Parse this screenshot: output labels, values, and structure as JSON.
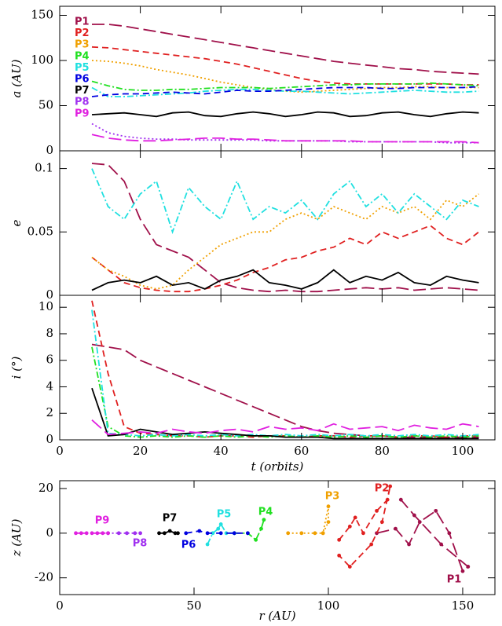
{
  "chart_data": [
    {
      "type": "line",
      "ylabel": "a (AU)",
      "x": [
        8,
        12,
        16,
        20,
        24,
        28,
        32,
        36,
        40,
        44,
        48,
        52,
        56,
        60,
        64,
        68,
        72,
        76,
        80,
        84,
        88,
        92,
        96,
        100,
        104
      ],
      "xlim": [
        0,
        108
      ],
      "xticks": [
        0,
        20,
        40,
        60,
        80,
        100
      ],
      "ylim": [
        0,
        160
      ],
      "yticks": [
        0,
        50,
        100,
        150
      ],
      "series": [
        {
          "name": "P1",
          "color": "#a0104a",
          "style": "long-dashed",
          "values": [
            140,
            140,
            138,
            135,
            132,
            129,
            126,
            123,
            120,
            117,
            114,
            111,
            108,
            105,
            102,
            99,
            97,
            95,
            93,
            91,
            90,
            88,
            87,
            86,
            85
          ]
        },
        {
          "name": "P2",
          "color": "#e02020",
          "style": "dashed",
          "values": [
            115,
            114,
            112,
            110,
            108,
            106,
            104,
            102,
            99,
            96,
            92,
            88,
            84,
            80,
            77,
            75,
            74,
            74,
            74,
            74,
            74,
            74,
            74,
            73,
            73
          ]
        },
        {
          "name": "P3",
          "color": "#f0a000",
          "style": "dotted",
          "values": [
            100,
            99,
            97,
            94,
            90,
            87,
            84,
            80,
            76,
            73,
            70,
            68,
            66,
            65,
            66,
            67,
            68,
            69,
            70,
            70,
            71,
            71,
            70,
            70,
            70
          ]
        },
        {
          "name": "P4",
          "color": "#20e020",
          "style": "dash-dot",
          "values": [
            77,
            72,
            68,
            67,
            67,
            68,
            68,
            69,
            70,
            70,
            70,
            69,
            70,
            71,
            72,
            73,
            73,
            74,
            74,
            74,
            74,
            75,
            74,
            73,
            72
          ]
        },
        {
          "name": "P5",
          "color": "#20e0e0",
          "style": "dash-dot",
          "values": [
            70,
            60,
            60,
            61,
            62,
            63,
            64,
            66,
            67,
            68,
            68,
            67,
            66,
            66,
            65,
            64,
            63,
            64,
            65,
            66,
            67,
            66,
            65,
            65,
            66
          ]
        },
        {
          "name": "P6",
          "color": "#0000e0",
          "style": "dashed",
          "values": [
            60,
            62,
            63,
            63,
            64,
            65,
            64,
            63,
            65,
            67,
            66,
            66,
            67,
            68,
            69,
            70,
            70,
            70,
            69,
            69,
            70,
            70,
            70,
            70,
            71
          ]
        },
        {
          "name": "P7",
          "color": "#000000",
          "style": "solid",
          "values": [
            40,
            41,
            42,
            40,
            38,
            42,
            43,
            39,
            38,
            41,
            43,
            41,
            38,
            40,
            43,
            42,
            38,
            39,
            42,
            43,
            40,
            38,
            41,
            43,
            42
          ]
        },
        {
          "name": "P8",
          "color": "#a030f0",
          "style": "dotted",
          "values": [
            30,
            20,
            16,
            14,
            13,
            13,
            12,
            12,
            12,
            12,
            12,
            11,
            11,
            11,
            11,
            11,
            10,
            10,
            10,
            10,
            10,
            10,
            9,
            9,
            9
          ]
        },
        {
          "name": "P9",
          "color": "#e020e0",
          "style": "long-dashed",
          "values": [
            18,
            14,
            12,
            11,
            11,
            12,
            13,
            14,
            14,
            13,
            13,
            12,
            11,
            11,
            11,
            11,
            11,
            10,
            10,
            10,
            10,
            10,
            10,
            10,
            9
          ]
        }
      ]
    },
    {
      "type": "line",
      "ylabel": "e",
      "x": [
        8,
        12,
        16,
        20,
        24,
        28,
        32,
        36,
        40,
        44,
        48,
        52,
        56,
        60,
        64,
        68,
        72,
        76,
        80,
        84,
        88,
        92,
        96,
        100,
        104
      ],
      "xlim": [
        0,
        108
      ],
      "xticks": [
        0,
        20,
        40,
        60,
        80,
        100
      ],
      "ylim": [
        0,
        0.114
      ],
      "yticks": [
        0,
        0.05,
        0.1
      ],
      "series": [
        {
          "name": "P1",
          "color": "#a0104a",
          "style": "long-dashed",
          "values": [
            0.104,
            0.103,
            0.09,
            0.06,
            0.04,
            0.035,
            0.03,
            0.02,
            0.01,
            0.006,
            0.004,
            0.003,
            0.004,
            0.003,
            0.003,
            0.004,
            0.005,
            0.006,
            0.005,
            0.006,
            0.004,
            0.005,
            0.006,
            0.005,
            0.004
          ]
        },
        {
          "name": "P2",
          "color": "#e02020",
          "style": "dashed",
          "values": [
            0.03,
            0.02,
            0.01,
            0.006,
            0.004,
            0.003,
            0.003,
            0.005,
            0.008,
            0.012,
            0.018,
            0.022,
            0.028,
            0.03,
            0.035,
            0.038,
            0.045,
            0.04,
            0.05,
            0.045,
            0.05,
            0.055,
            0.045,
            0.04,
            0.05
          ]
        },
        {
          "name": "P3",
          "color": "#f0a000",
          "style": "dotted",
          "values": [
            0.03,
            0.02,
            0.015,
            0.008,
            0.005,
            0.008,
            0.02,
            0.03,
            0.04,
            0.045,
            0.05,
            0.05,
            0.06,
            0.065,
            0.06,
            0.07,
            0.065,
            0.06,
            0.07,
            0.065,
            0.07,
            0.06,
            0.075,
            0.07,
            0.08
          ]
        },
        {
          "name": "P5",
          "color": "#20e0e0",
          "style": "dash-dot",
          "values": [
            0.1,
            0.07,
            0.06,
            0.08,
            0.09,
            0.05,
            0.085,
            0.07,
            0.06,
            0.09,
            0.06,
            0.07,
            0.065,
            0.075,
            0.06,
            0.08,
            0.09,
            0.07,
            0.08,
            0.065,
            0.08,
            0.07,
            0.06,
            0.075,
            0.07
          ]
        },
        {
          "name": "P7",
          "color": "#000000",
          "style": "solid",
          "values": [
            0.004,
            0.01,
            0.012,
            0.01,
            0.015,
            0.008,
            0.01,
            0.005,
            0.012,
            0.015,
            0.02,
            0.01,
            0.008,
            0.005,
            0.01,
            0.02,
            0.01,
            0.015,
            0.012,
            0.018,
            0.01,
            0.008,
            0.015,
            0.012,
            0.01
          ]
        }
      ]
    },
    {
      "type": "line",
      "ylabel": "i (°)",
      "xlabel": "t (orbits)",
      "x": [
        8,
        12,
        16,
        20,
        24,
        28,
        32,
        36,
        40,
        44,
        48,
        52,
        56,
        60,
        64,
        68,
        72,
        76,
        80,
        84,
        88,
        92,
        96,
        100,
        104
      ],
      "xlim": [
        0,
        108
      ],
      "xticks": [
        0,
        20,
        40,
        60,
        80,
        100
      ],
      "ylim": [
        0,
        10.9
      ],
      "yticks": [
        0,
        2,
        4,
        6,
        8,
        10
      ],
      "series": [
        {
          "name": "P1",
          "color": "#a0104a",
          "style": "long-dashed",
          "values": [
            7.2,
            7,
            6.8,
            6,
            5.5,
            5,
            4.5,
            4,
            3.5,
            3,
            2.5,
            2,
            1.5,
            1,
            0.7,
            0.5,
            0.4,
            0.3,
            0.3,
            0.2,
            0.2,
            0.2,
            0.2,
            0.2,
            0.2
          ]
        },
        {
          "name": "P2",
          "color": "#e02020",
          "style": "dashed",
          "values": [
            10.5,
            5,
            1,
            0.5,
            0.4,
            0.3,
            0.3,
            0.2,
            0.3,
            0.3,
            0.2,
            0.3,
            0.3,
            0.2,
            0.3,
            0.3,
            0.2,
            0.3,
            0.3,
            0.2,
            0.3,
            0.3,
            0.2,
            0.3,
            0.3
          ]
        },
        {
          "name": "P4",
          "color": "#20e020",
          "style": "dash-dot",
          "values": [
            7,
            1,
            0.3,
            0.2,
            0.3,
            0.2,
            0.3,
            0.2,
            0.3,
            0.2,
            0.3,
            0.2,
            0.3,
            0.2,
            0.3,
            0.2,
            0.3,
            0.2,
            0.3,
            0.2,
            0.3,
            0.2,
            0.3,
            0.2,
            0.3
          ]
        },
        {
          "name": "P5",
          "color": "#20e0e0",
          "style": "dash-dot",
          "values": [
            9.8,
            0.5,
            0.4,
            0.3,
            0.4,
            0.3,
            0.4,
            0.3,
            0.4,
            0.3,
            0.4,
            0.3,
            0.4,
            0.3,
            0.4,
            0.3,
            0.4,
            0.3,
            0.4,
            0.3,
            0.4,
            0.3,
            0.4,
            0.3,
            0.4
          ]
        },
        {
          "name": "P7",
          "color": "#000000",
          "style": "solid",
          "values": [
            3.9,
            0.3,
            0.4,
            0.8,
            0.6,
            0.4,
            0.5,
            0.6,
            0.5,
            0.4,
            0.3,
            0.3,
            0.2,
            0.2,
            0.2,
            0.1,
            0.1,
            0.1,
            0.1,
            0.1,
            0.1,
            0.1,
            0.1,
            0.1,
            0.1
          ]
        },
        {
          "name": "P9",
          "color": "#e020e0",
          "style": "long-dashed",
          "values": [
            1.5,
            0.4,
            0.5,
            0.6,
            0.5,
            0.8,
            0.6,
            0.5,
            0.7,
            0.8,
            0.6,
            1,
            0.8,
            0.9,
            0.7,
            1.2,
            0.8,
            0.9,
            1,
            0.7,
            1.1,
            0.9,
            0.8,
            1.2,
            1
          ]
        }
      ]
    },
    {
      "type": "line",
      "ylabel": "z (AU)",
      "xlabel": "r (AU)",
      "xlim": [
        0,
        162
      ],
      "xticks": [
        0,
        50,
        100,
        150
      ],
      "ylim": [
        -27.5,
        23.5
      ],
      "yticks": [
        -20,
        0,
        20
      ],
      "series": [
        {
          "name": "P1",
          "color": "#a0104a",
          "style": "long-dashed",
          "x": [
            118,
            125,
            130,
            134,
            140,
            145,
            150,
            152,
            142,
            132,
            127
          ],
          "values": [
            0,
            2,
            -5,
            5,
            10,
            0,
            -17,
            -15,
            -5,
            8,
            15
          ]
        },
        {
          "name": "P2",
          "color": "#e02020",
          "style": "dashed",
          "x": [
            104,
            108,
            110,
            113,
            118,
            122,
            123,
            120,
            116,
            108,
            104
          ],
          "values": [
            -3,
            3,
            7,
            0,
            10,
            15,
            21,
            5,
            -5,
            -15,
            -10
          ]
        },
        {
          "name": "P3",
          "color": "#f0a000",
          "style": "dotted",
          "x": [
            85,
            90,
            95,
            98,
            100,
            100,
            98
          ],
          "values": [
            0,
            0,
            0,
            0,
            5,
            12,
            0
          ]
        },
        {
          "name": "P4",
          "color": "#20e020",
          "style": "dash-dot",
          "x": [
            65,
            70,
            73,
            75,
            76
          ],
          "values": [
            0,
            0,
            -3,
            2,
            6
          ]
        },
        {
          "name": "P5",
          "color": "#20e0e0",
          "style": "dash-dot",
          "x": [
            55,
            57,
            59,
            60,
            62,
            65
          ],
          "values": [
            -5,
            0,
            2,
            4,
            0,
            0
          ]
        },
        {
          "name": "P6",
          "color": "#0000e0",
          "style": "dashed",
          "x": [
            47,
            52,
            55,
            60,
            65,
            70
          ],
          "values": [
            0,
            1,
            0,
            0,
            0,
            0
          ]
        },
        {
          "name": "P7",
          "color": "#000000",
          "style": "solid",
          "x": [
            37,
            39,
            41,
            43,
            44
          ],
          "values": [
            0,
            0,
            1,
            0,
            0
          ]
        },
        {
          "name": "P8",
          "color": "#a030f0",
          "style": "dotted",
          "x": [
            18,
            22,
            25,
            28,
            30
          ],
          "values": [
            0,
            0,
            0,
            0,
            0
          ]
        },
        {
          "name": "P9",
          "color": "#e020e0",
          "style": "long-dashed",
          "x": [
            6,
            8,
            10,
            12,
            14,
            16,
            18
          ],
          "values": [
            0,
            0,
            0,
            0,
            0,
            0,
            0
          ]
        }
      ]
    }
  ]
}
